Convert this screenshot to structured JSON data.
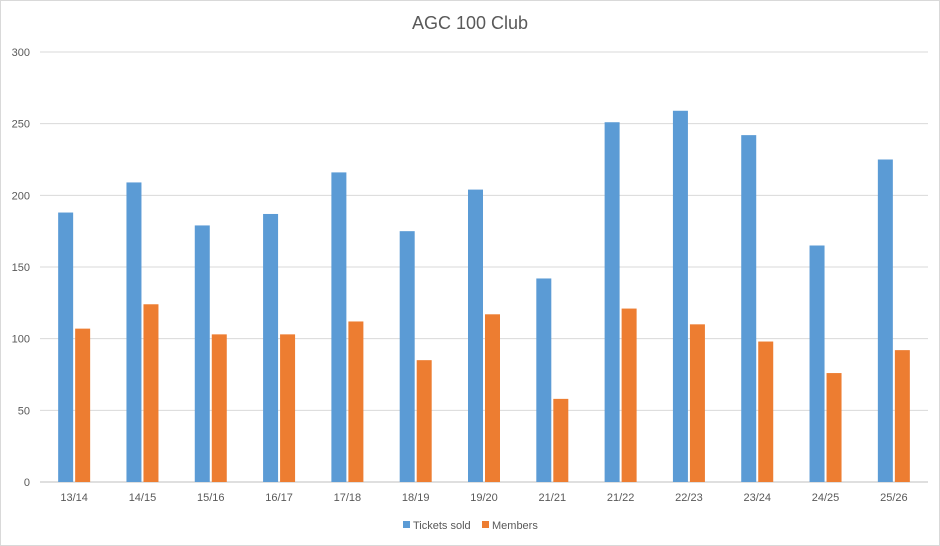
{
  "chart_data": {
    "type": "bar",
    "title": "AGC 100 Club",
    "xlabel": "",
    "ylabel": "",
    "categories": [
      "13/14",
      "14/15",
      "15/16",
      "16/17",
      "17/18",
      "18/19",
      "19/20",
      "21/21",
      "21/22",
      "22/23",
      "23/24",
      "24/25",
      "25/26"
    ],
    "series": [
      {
        "name": "Tickets sold",
        "color": "#5B9BD5",
        "values": [
          188,
          209,
          179,
          187,
          216,
          175,
          204,
          142,
          251,
          259,
          242,
          165,
          225
        ]
      },
      {
        "name": "Members",
        "color": "#ED7D31",
        "values": [
          107,
          124,
          103,
          103,
          112,
          85,
          117,
          58,
          121,
          110,
          98,
          76,
          92
        ]
      }
    ],
    "ylim": [
      0,
      300
    ],
    "yticks": [
      "0",
      "50",
      "100",
      "150",
      "200",
      "250",
      "300"
    ],
    "grid": true,
    "legend_position": "bottom"
  }
}
